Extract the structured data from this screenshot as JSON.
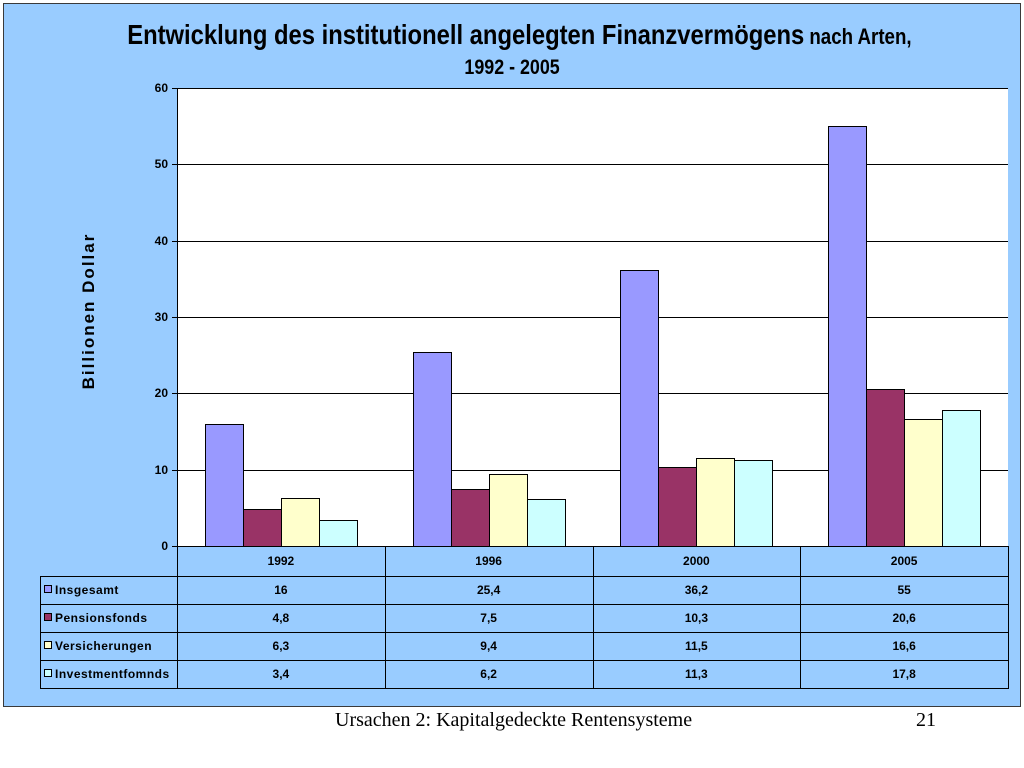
{
  "slide": {
    "footer_text": "Ursachen 2: Kapitalgedeckte Rentensysteme",
    "page_number": "21"
  },
  "colors": {
    "slide_background": "#FFFFFF",
    "chart_area_background": "#99CCFF",
    "plot_area_background": "#FFFFFF",
    "line_color": "#000000"
  },
  "chart_data": {
    "type": "bar",
    "title": "Entwicklung des institutionell angelegten Finanzvermögens",
    "title_suffix": "nach Arten,",
    "subtitle": "1992 - 2005",
    "ylabel": "Billionen Dollar",
    "ylim": [
      0,
      60
    ],
    "yticks": [
      0,
      10,
      20,
      30,
      40,
      50,
      60
    ],
    "grid": true,
    "legend": "bottom",
    "data_table": true,
    "categories": [
      "1992",
      "1996",
      "2000",
      "2005"
    ],
    "series": [
      {
        "name": "Insgesamt",
        "color": "#9999FF",
        "values": [
          16,
          25.4,
          36.2,
          55
        ],
        "value_labels": [
          "16",
          "25,4",
          "36,2",
          "55"
        ]
      },
      {
        "name": "Pensionsfonds",
        "color": "#993366",
        "values": [
          4.8,
          7.5,
          10.3,
          20.6
        ],
        "value_labels": [
          "4,8",
          "7,5",
          "10,3",
          "20,6"
        ]
      },
      {
        "name": "Versicherungen",
        "color": "#FFFFCC",
        "values": [
          6.3,
          9.4,
          11.5,
          16.6
        ],
        "value_labels": [
          "6,3",
          "9,4",
          "11,5",
          "16,6"
        ]
      },
      {
        "name": "Investmentfomnds",
        "color": "#CCFFFF",
        "values": [
          3.4,
          6.2,
          11.3,
          17.8
        ],
        "value_labels": [
          "3,4",
          "6,2",
          "11,3",
          "17,8"
        ]
      }
    ]
  }
}
